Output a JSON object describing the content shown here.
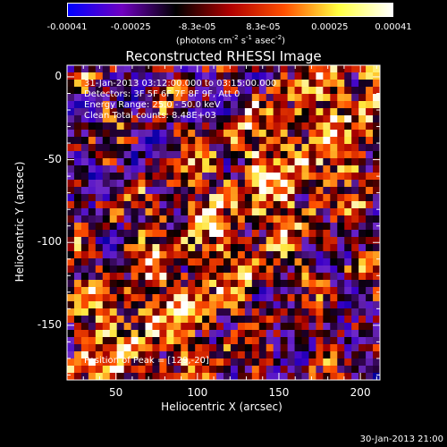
{
  "colorbar": {
    "ticks": [
      "-0.00041",
      "-0.00025",
      "-8.3e-05",
      "8.3e-05",
      "0.00025",
      "0.00041"
    ],
    "tick_values": [
      -0.00041,
      -0.00025,
      -8.3e-05,
      8.3e-05,
      0.00025,
      0.00041
    ],
    "units_prefix": "(photons cm",
    "units_sup1": "-2",
    "units_mid": " s",
    "units_sup2": "-1",
    "units_mid2": " asec",
    "units_sup3": "-2",
    "units_suffix": ")",
    "colors": [
      "#0000ff",
      "#7000c0",
      "#000000",
      "#b00000",
      "#ff5000",
      "#ffff40",
      "#ffffff"
    ]
  },
  "chart_data": {
    "type": "heatmap",
    "title": "Reconstructed RHESSI Image",
    "xlabel": "Heliocentric X (arcsec)",
    "ylabel": "Heliocentric Y (arcsec)",
    "xlim": [
      20,
      212
    ],
    "ylim": [
      -183,
      7
    ],
    "x_ticks": [
      50,
      100,
      150,
      200
    ],
    "y_ticks": [
      0,
      -50,
      -100,
      -150
    ],
    "annotations": {
      "time": "31-Jan-2013 03:12:00.000 to 03:15:00.000",
      "detectors": "Detectors: 3F 5F 6F 7F 8F 9F, Att 0",
      "energy": "Energy Range: 25.0 - 50.0 keV",
      "clean": "Clean    Total counts: 8.48E+03",
      "peak": "Position of Peak = [129,-20]"
    }
  },
  "footer": {
    "datestamp": "30-Jan-2013 21:00"
  }
}
